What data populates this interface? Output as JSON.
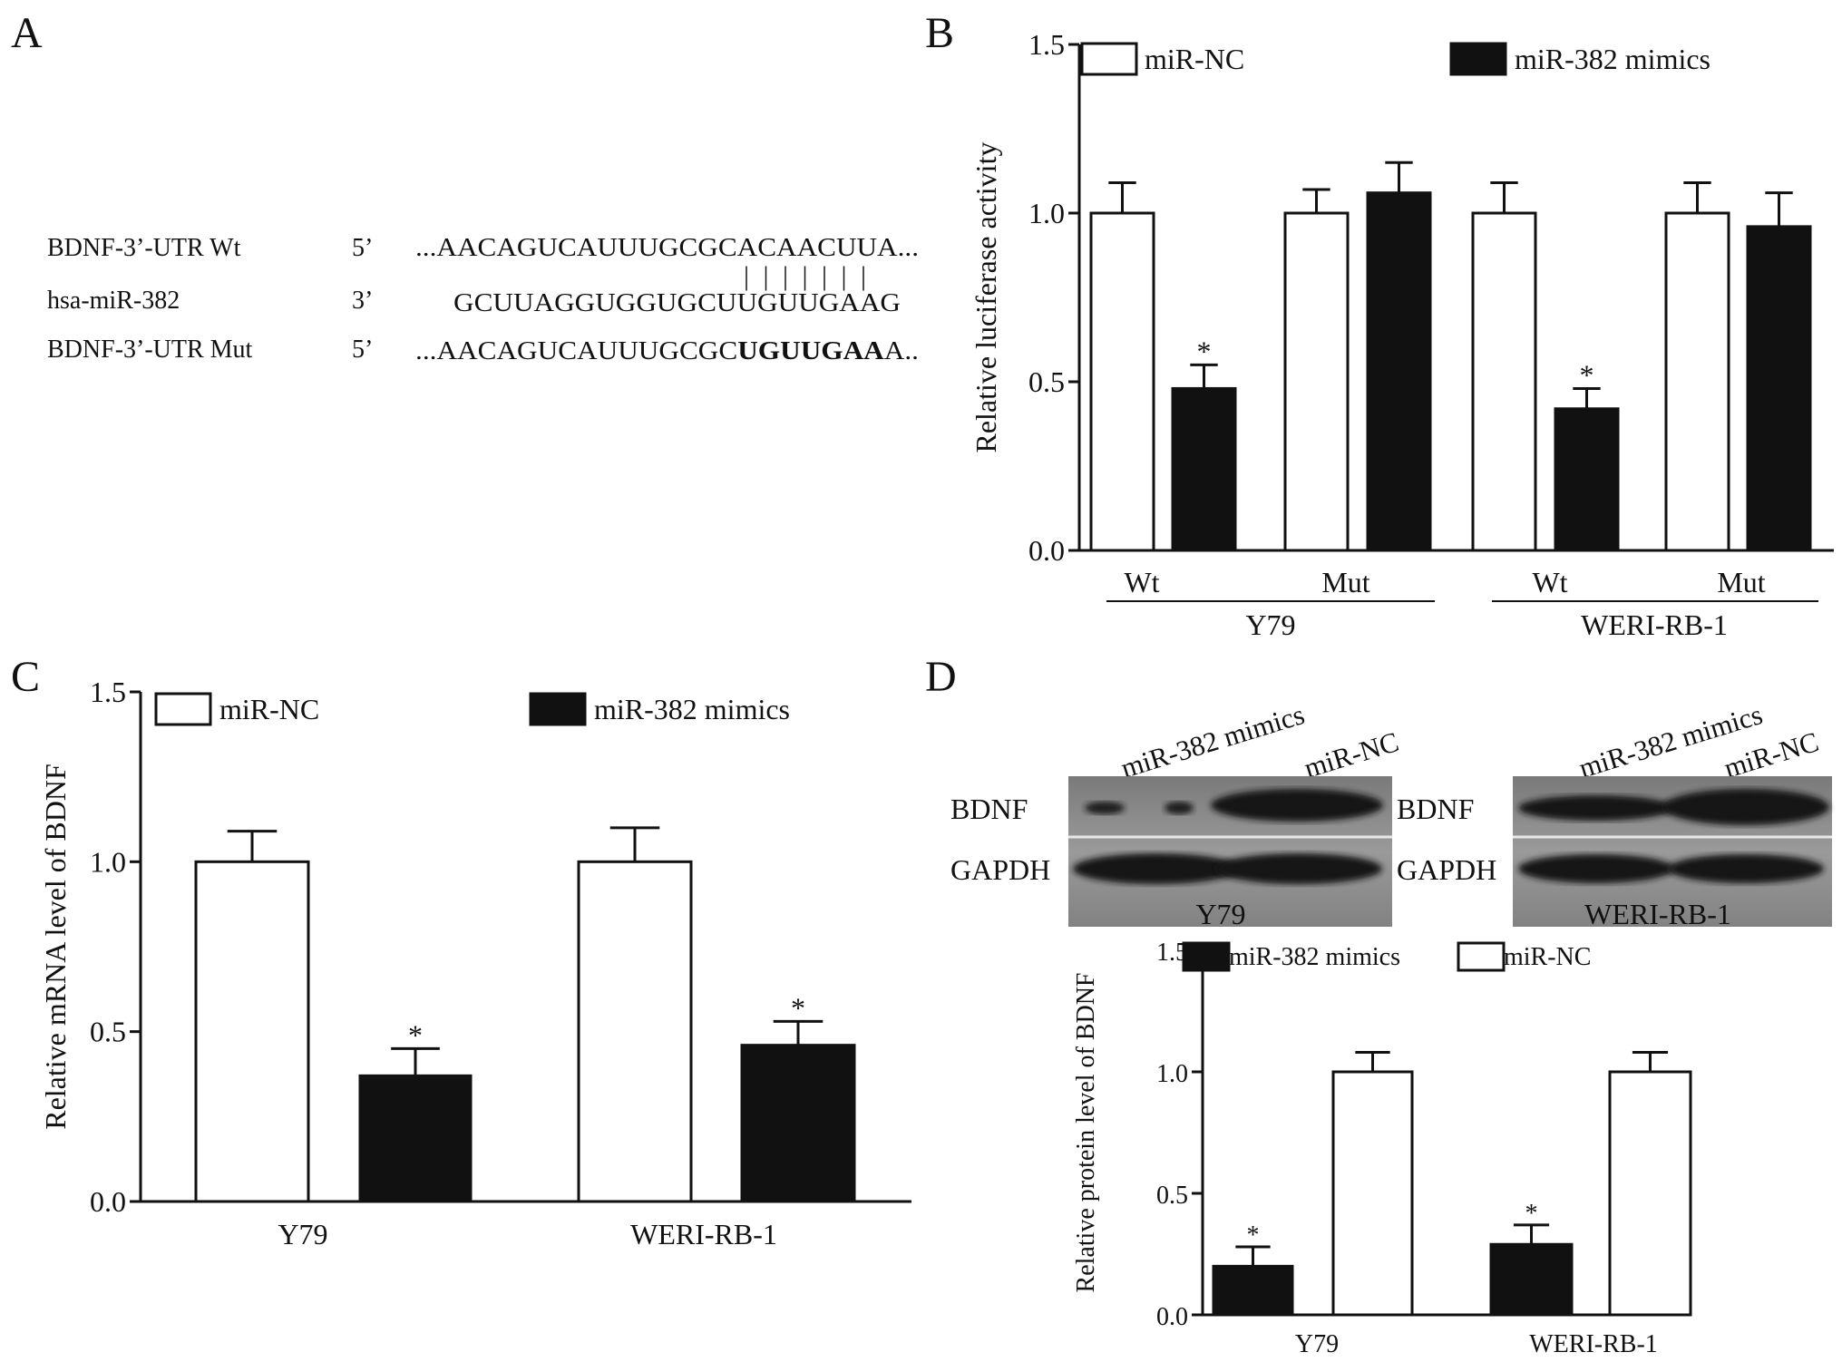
{
  "panel_letters": {
    "a": "A",
    "b": "B",
    "c": "C",
    "d": "D"
  },
  "panel_a": {
    "rows": [
      {
        "name": "BDNF-3’-UTR Wt",
        "end": "5’",
        "prefix": "...AACAGUCAUUUGCGCACAACUUA...",
        "bold": "",
        "suffix": ""
      },
      {
        "name": "hsa-miR-382",
        "end": "3’",
        "prefix": "GCUUAGGUGGUGCUUGUUGAAG",
        "bold": "",
        "suffix": ""
      },
      {
        "name": "BDNF-3’-UTR Mut",
        "end": "5’",
        "prefix": "...AACAGUCAUUUGCGC",
        "bold": "UGUUGAA",
        "suffix": "A.."
      }
    ],
    "pairing": "| | | | | | |"
  },
  "panel_d_blots": [
    {
      "group": "Y79",
      "lane_labels": [
        "miR-382 mimics",
        "miR-NC"
      ],
      "rows": [
        "BDNF",
        "GAPDH"
      ]
    },
    {
      "group": "WERI-RB-1",
      "lane_labels": [
        "miR-382 mimics",
        "miR-NC"
      ],
      "rows": [
        "BDNF",
        "GAPDH"
      ]
    }
  ],
  "chart_data": [
    {
      "panel": "B",
      "type": "bar",
      "ylabel": "Relative luciferase activity",
      "ylim": [
        0,
        1.5
      ],
      "yticks": [
        "0.0",
        "0.5",
        "1.0",
        "1.5"
      ],
      "categories": [
        "Wt",
        "Mut",
        "Wt",
        "Mut"
      ],
      "groups": [
        {
          "label": "Y79",
          "span": [
            0,
            1
          ]
        },
        {
          "label": "WERI-RB-1",
          "span": [
            2,
            3
          ]
        }
      ],
      "series": [
        {
          "name": "miR-NC",
          "fill": "#ffffff",
          "values": [
            1.0,
            1.0,
            1.0,
            1.0
          ],
          "errors": [
            0.09,
            0.07,
            0.09,
            0.09
          ],
          "sig": [
            "",
            "",
            "",
            ""
          ]
        },
        {
          "name": "miR-382 mimics",
          "fill": "#111111",
          "values": [
            0.48,
            1.06,
            0.42,
            0.96
          ],
          "errors": [
            0.07,
            0.09,
            0.06,
            0.1
          ],
          "sig": [
            "*",
            "",
            "*",
            ""
          ]
        }
      ],
      "legend": "top"
    },
    {
      "panel": "C",
      "type": "bar",
      "ylabel": "Relative mRNA level of BDNF",
      "ylim": [
        0,
        1.5
      ],
      "yticks": [
        "0.0",
        "0.5",
        "1.0",
        "1.5"
      ],
      "categories": [
        "Y79",
        "WERI-RB-1"
      ],
      "series": [
        {
          "name": "miR-NC",
          "fill": "#ffffff",
          "values": [
            1.0,
            1.0
          ],
          "errors": [
            0.09,
            0.1
          ],
          "sig": [
            "",
            ""
          ]
        },
        {
          "name": "miR-382 mimics",
          "fill": "#111111",
          "values": [
            0.37,
            0.46
          ],
          "errors": [
            0.08,
            0.07
          ],
          "sig": [
            "*",
            "*"
          ]
        }
      ],
      "legend": "top"
    },
    {
      "panel": "D",
      "type": "bar",
      "ylabel": "Relative protein level of BDNF",
      "ylim": [
        0,
        1.5
      ],
      "yticks": [
        "0.0",
        "0.5",
        "1.0",
        "1.5"
      ],
      "categories": [
        "Y79",
        "WERI-RB-1"
      ],
      "series": [
        {
          "name": "miR-382 mimics",
          "fill": "#111111",
          "values": [
            0.2,
            0.29
          ],
          "errors": [
            0.08,
            0.08
          ],
          "sig": [
            "*",
            "*"
          ]
        },
        {
          "name": "miR-NC",
          "fill": "#ffffff",
          "values": [
            1.0,
            1.0
          ],
          "errors": [
            0.08,
            0.08
          ],
          "sig": [
            "",
            ""
          ]
        }
      ],
      "legend": "top"
    }
  ]
}
